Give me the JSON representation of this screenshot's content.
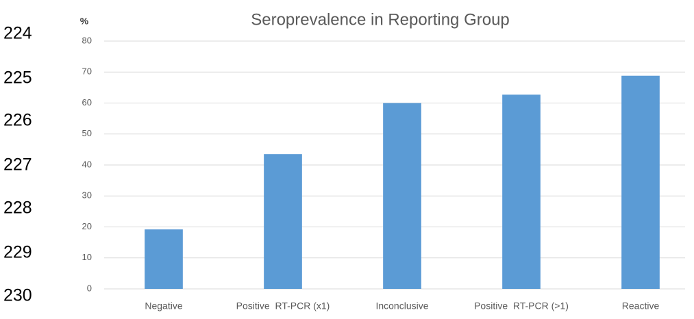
{
  "line_numbers": [
    224,
    225,
    226,
    227,
    228,
    229,
    230
  ],
  "chart_data": {
    "type": "bar",
    "title": "Seroprevalence in Reporting Group",
    "y_label": "%",
    "categories": [
      "Negative",
      "Positive  RT-PCR (x1)",
      "Inconclusive",
      "Positive  RT-PCR (>1)",
      "Reactive"
    ],
    "values": [
      19.2,
      43.5,
      60,
      62.7,
      68.8
    ],
    "color": "#5b9bd5",
    "ylim": [
      0,
      80
    ],
    "yticks": [
      0,
      10,
      20,
      30,
      40,
      50,
      60,
      70,
      80
    ],
    "grid": true
  }
}
